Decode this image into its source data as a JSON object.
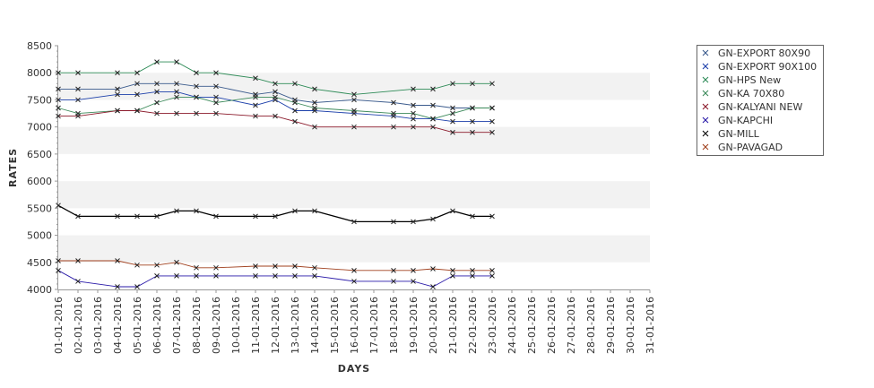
{
  "chart_data": {
    "type": "line",
    "title": "",
    "xlabel": "DAYS",
    "ylabel": "RATES",
    "ylim": [
      4000,
      8500
    ],
    "y_ticks": [
      4000,
      4500,
      5000,
      5500,
      6000,
      6500,
      7000,
      7500,
      8000,
      8500
    ],
    "grid": true,
    "legend_position": "top-right",
    "categories": [
      "01-01-2016",
      "02-01-2016",
      "03-01-2016",
      "04-01-2016",
      "05-01-2016",
      "06-01-2016",
      "07-01-2016",
      "08-01-2016",
      "09-01-2016",
      "10-01-2016",
      "11-01-2016",
      "12-01-2016",
      "13-01-2016",
      "14-01-2016",
      "15-01-2016",
      "16-01-2016",
      "17-01-2016",
      "18-01-2016",
      "19-01-2016",
      "20-01-2016",
      "21-01-2016",
      "22-01-2016",
      "23-01-2016",
      "24-01-2016",
      "25-01-2016",
      "26-01-2016",
      "27-01-2016",
      "28-01-2016",
      "29-01-2016",
      "30-01-2016",
      "31-01-2016"
    ],
    "series": [
      {
        "name": "GN-EXPORT 80X90",
        "color": "#3a5a8c",
        "values": [
          7700,
          7700,
          null,
          7700,
          7800,
          7800,
          7800,
          7750,
          7750,
          null,
          7600,
          7650,
          7500,
          7450,
          null,
          7500,
          null,
          7450,
          7400,
          7400,
          7350,
          7350,
          7350,
          null,
          null,
          null,
          null,
          null,
          null,
          null,
          null
        ]
      },
      {
        "name": "GN-EXPORT 90X100",
        "color": "#1c3faa",
        "values": [
          7500,
          7500,
          null,
          7600,
          7600,
          7650,
          7650,
          7550,
          7550,
          null,
          7400,
          7500,
          7300,
          7300,
          null,
          7250,
          null,
          7200,
          7150,
          7150,
          7100,
          7100,
          7100,
          null,
          null,
          null,
          null,
          null,
          null,
          null,
          null
        ]
      },
      {
        "name": "GN-HPS New",
        "color": "#2e8b57",
        "values": [
          8000,
          8000,
          null,
          8000,
          8000,
          8200,
          8200,
          8000,
          8000,
          null,
          7900,
          7800,
          7800,
          7700,
          null,
          7600,
          null,
          null,
          7700,
          7700,
          7800,
          7800,
          7800,
          null,
          null,
          null,
          null,
          null,
          null,
          null,
          null
        ]
      },
      {
        "name": "GN-KA 70X80",
        "color": "#3c8a5a",
        "values": [
          7350,
          7250,
          null,
          7300,
          7300,
          7450,
          7550,
          7550,
          7450,
          null,
          7550,
          7550,
          7450,
          7350,
          null,
          7300,
          null,
          7250,
          7250,
          7150,
          7250,
          7350,
          7350,
          null,
          null,
          null,
          null,
          null,
          null,
          null,
          null
        ]
      },
      {
        "name": "GN-KALYANI NEW",
        "color": "#8b1a2b",
        "values": [
          7200,
          7200,
          null,
          7300,
          7300,
          7250,
          7250,
          7250,
          7250,
          null,
          7200,
          7200,
          7100,
          7000,
          null,
          7000,
          null,
          7000,
          7000,
          7000,
          6900,
          6900,
          6900,
          null,
          null,
          null,
          null,
          null,
          null,
          null,
          null
        ]
      },
      {
        "name": "GN-KAPCHI",
        "color": "#2a1aa8",
        "values": [
          4350,
          4150,
          null,
          4050,
          4050,
          4250,
          4250,
          4250,
          4250,
          null,
          4250,
          4250,
          4250,
          4250,
          null,
          4150,
          null,
          4150,
          4150,
          4050,
          4250,
          4250,
          4250,
          null,
          null,
          null,
          null,
          null,
          null,
          null,
          null
        ]
      },
      {
        "name": "GN-MILL",
        "color": "#000000",
        "values": [
          5550,
          5350,
          null,
          5350,
          5350,
          5350,
          5450,
          5450,
          5350,
          null,
          5350,
          5350,
          5450,
          5450,
          null,
          5250,
          null,
          5250,
          5250,
          5300,
          5450,
          5350,
          5350,
          null,
          null,
          null,
          null,
          null,
          null,
          null,
          null
        ]
      },
      {
        "name": "GN-PAVAGAD",
        "color": "#a0401e",
        "values": [
          4530,
          4530,
          null,
          4530,
          4450,
          4450,
          4500,
          4400,
          4400,
          null,
          4430,
          4430,
          4430,
          4400,
          null,
          4350,
          null,
          4350,
          4350,
          4380,
          4350,
          4350,
          4350,
          null,
          null,
          null,
          null,
          null,
          null,
          null,
          null
        ]
      }
    ]
  }
}
